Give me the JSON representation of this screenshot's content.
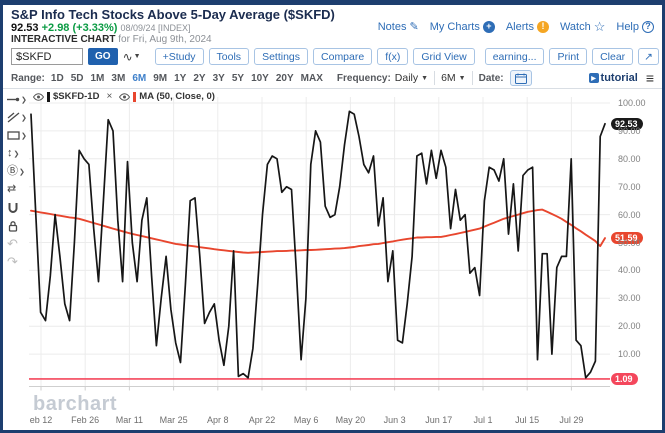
{
  "header": {
    "title": "S&P Info Tech Stocks Above 5-Day Average ($SKFD)",
    "price": "92.53",
    "change": "+2.98 (+3.33%)",
    "date_label": "08/09/24 [INDEX]",
    "interactive_chart": "INTERACTIVE CHART",
    "for_date": "for Fri, Aug 9th, 2024",
    "links": {
      "notes": "Notes",
      "my_charts": "My Charts",
      "alerts": "Alerts",
      "watch": "Watch",
      "help": "Help"
    }
  },
  "toolbar": {
    "symbol_value": "$SKFD",
    "go_label": "GO",
    "buttons": [
      "+Study",
      "Tools",
      "Settings",
      "Compare",
      "f(x)",
      "Grid View"
    ],
    "right_buttons": [
      "earning...",
      "Print",
      "Clear"
    ]
  },
  "range_bar": {
    "range_label": "Range:",
    "ranges": [
      "1D",
      "5D",
      "1M",
      "3M",
      "6M",
      "9M",
      "1Y",
      "2Y",
      "3Y",
      "5Y",
      "10Y",
      "20Y",
      "MAX"
    ],
    "active_range": "6M",
    "frequency_label": "Frequency:",
    "frequency_value": "Daily",
    "period_value": "6M",
    "date_label": "Date:",
    "tutorial_label": "tutorial"
  },
  "legend": {
    "series1": "$SKFD-1D",
    "series2": "MA (50, Close, 0)"
  },
  "badges": {
    "price": "92.53",
    "ma": "51.59",
    "hline": "1.09"
  },
  "watermark": "barchart",
  "colors": {
    "price_line": "#161616",
    "ma_line": "#e8462e",
    "hline": "#f4475c",
    "grid": "#ececec",
    "axis": "#cfcfcf",
    "accent_blue": "#2e6db6",
    "green": "#0a9b43"
  },
  "chart_data": {
    "type": "line",
    "title": "S&P Info Tech Stocks Above 5-Day Average ($SKFD)",
    "ylim": [
      0,
      100
    ],
    "grid": true,
    "y_tick_labels": [
      "100.00",
      "90.00",
      "80.00",
      "70.00",
      "60.00",
      "50.00",
      "40.00",
      "30.00",
      "20.00",
      "10.00"
    ],
    "y_tick_values": [
      100,
      90,
      80,
      70,
      60,
      50,
      40,
      30,
      20,
      10
    ],
    "x_labels": [
      "eb 12",
      "Feb 26",
      "Mar 11",
      "Mar 25",
      "Apr 8",
      "Apr 22",
      "May 6",
      "May 20",
      "Jun 3",
      "Jun 17",
      "Jul 1",
      "Jul 15",
      "Jul 29"
    ],
    "hline": {
      "value": 1.09,
      "label": "1.09"
    },
    "last_values": {
      "price": 92.53,
      "ma": 51.59
    },
    "series": [
      {
        "name": "$SKFD-1D",
        "values": [
          96,
          60,
          25,
          22,
          38,
          60,
          45,
          28,
          22,
          50,
          83,
          80,
          78,
          55,
          36,
          65,
          94,
          90,
          58,
          36,
          79,
          50,
          36,
          58,
          66,
          38,
          13,
          30,
          45,
          26,
          14,
          7,
          35,
          65,
          66,
          45,
          21,
          25,
          28,
          15,
          6,
          20,
          47,
          2,
          3,
          1.5,
          12,
          35,
          60,
          78,
          81,
          80,
          68,
          70,
          69,
          40,
          8,
          30,
          78,
          90,
          86,
          63,
          59,
          60,
          70,
          85,
          97,
          96,
          88,
          78,
          75,
          81,
          56,
          66,
          36,
          47,
          15,
          14,
          28,
          45,
          81,
          82,
          71,
          83,
          73,
          83,
          77,
          55,
          69,
          58,
          60,
          39,
          41,
          31,
          65,
          77,
          76,
          72,
          80,
          53,
          71,
          47,
          74,
          76,
          77,
          8,
          46,
          46,
          10,
          41,
          45,
          45,
          80,
          15,
          13,
          1.5,
          3.5,
          7.5,
          88,
          92.53
        ]
      },
      {
        "name": "MA (50, Close, 0)",
        "values": [
          61.4,
          61.1,
          60.8,
          60.5,
          60.2,
          59.9,
          59.6,
          59.3,
          59.0,
          58.8,
          58.5,
          58.0,
          57.5,
          57.0,
          56.5,
          56.0,
          55.5,
          55.0,
          54.5,
          54.0,
          53.5,
          53.1,
          52.7,
          52.3,
          51.9,
          51.5,
          51.1,
          50.7,
          50.3,
          49.9,
          49.5,
          49.3,
          49.0,
          48.8,
          48.6,
          48.3,
          48.1,
          47.9,
          47.6,
          47.4,
          47.2,
          47.0,
          46.8,
          46.6,
          46.4,
          46.3,
          46.4,
          46.5,
          46.6,
          46.7,
          46.8,
          46.9,
          46.9,
          47.0,
          47.1,
          47.1,
          47.2,
          47.3,
          47.3,
          47.4,
          47.5,
          47.6,
          47.7,
          47.8,
          47.9,
          48.0,
          48.2,
          48.4,
          48.7,
          48.9,
          49.1,
          49.4,
          49.5,
          49.8,
          50.1,
          50.4,
          50.7,
          51.0,
          51.3,
          51.5,
          51.8,
          51.8,
          51.9,
          51.9,
          52.0,
          52.0,
          52.3,
          52.7,
          53.0,
          53.4,
          53.8,
          54.2,
          54.6,
          55.0,
          55.7,
          56.4,
          57.1,
          57.8,
          58.5,
          59.0,
          59.5,
          60.0,
          60.5,
          61.0,
          61.3,
          61.6,
          61.8,
          61.0,
          60.2,
          59.4,
          58.5,
          57.4,
          56.3,
          55.1,
          54.0,
          52.8,
          51.7,
          50.5,
          48.7,
          51.59
        ]
      }
    ]
  }
}
